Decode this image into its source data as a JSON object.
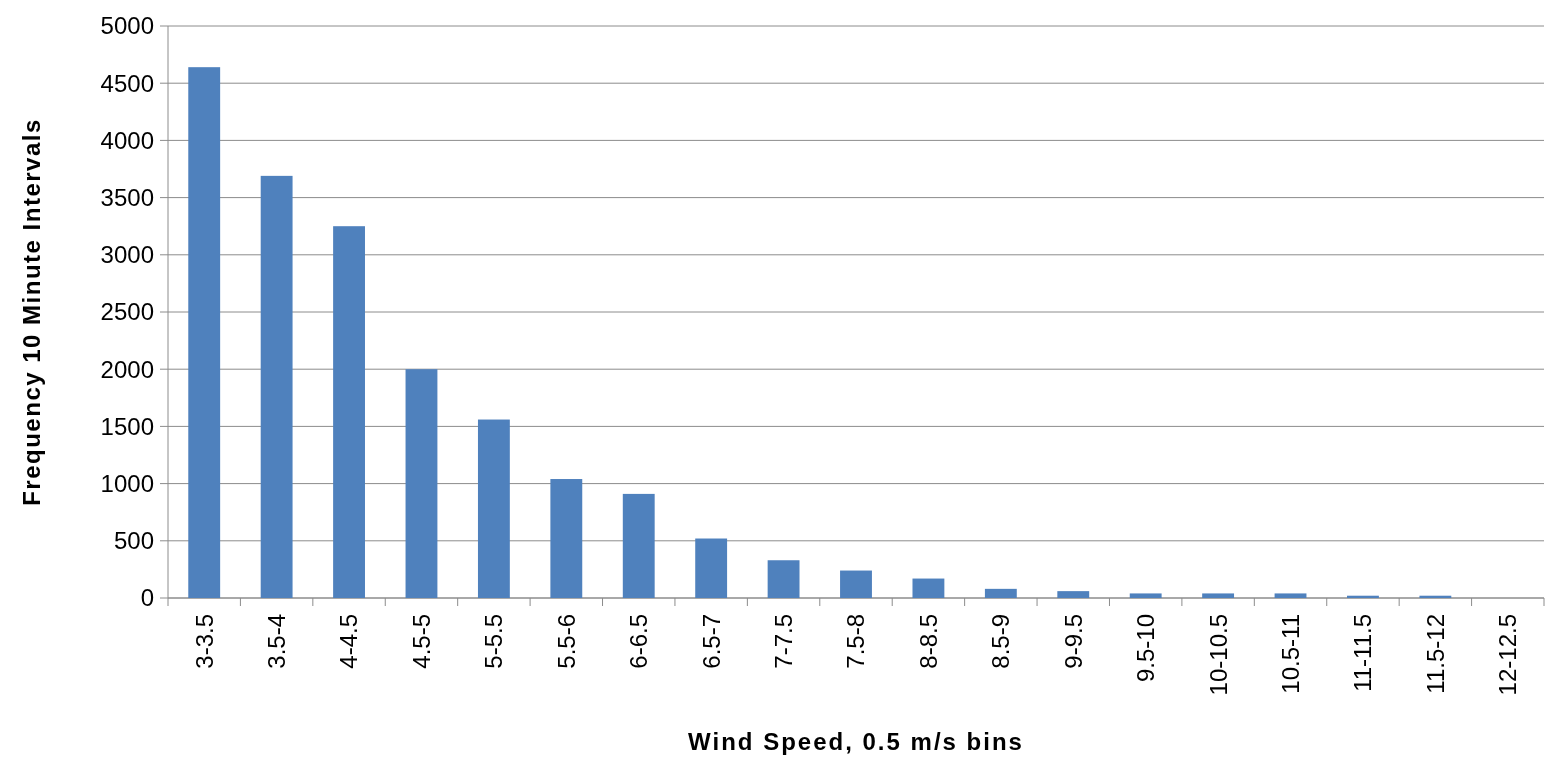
{
  "chart_data": {
    "type": "bar",
    "xlabel": "Wind Speed, 0.5 m/s bins",
    "ylabel": "Frequency 10 Minute Intervals",
    "categories": [
      "3-3.5",
      "3.5-4",
      "4-4.5",
      "4.5-5",
      "5-5.5",
      "5.5-6",
      "6-6.5",
      "6.5-7",
      "7-7.5",
      "7.5-8",
      "8-8.5",
      "8.5-9",
      "9-9.5",
      "9.5-10",
      "10-10.5",
      "10.5-11",
      "11-11.5",
      "11.5-12",
      "12-12.5"
    ],
    "values": [
      4640,
      3690,
      3250,
      2000,
      1560,
      1040,
      910,
      520,
      330,
      240,
      170,
      80,
      60,
      40,
      40,
      40,
      20,
      20,
      0
    ],
    "color": "#4f81bd",
    "ylim": [
      0,
      5000
    ],
    "yticks": [
      0,
      500,
      1000,
      1500,
      2000,
      2500,
      3000,
      3500,
      4000,
      4500,
      5000
    ],
    "grid": "y"
  }
}
